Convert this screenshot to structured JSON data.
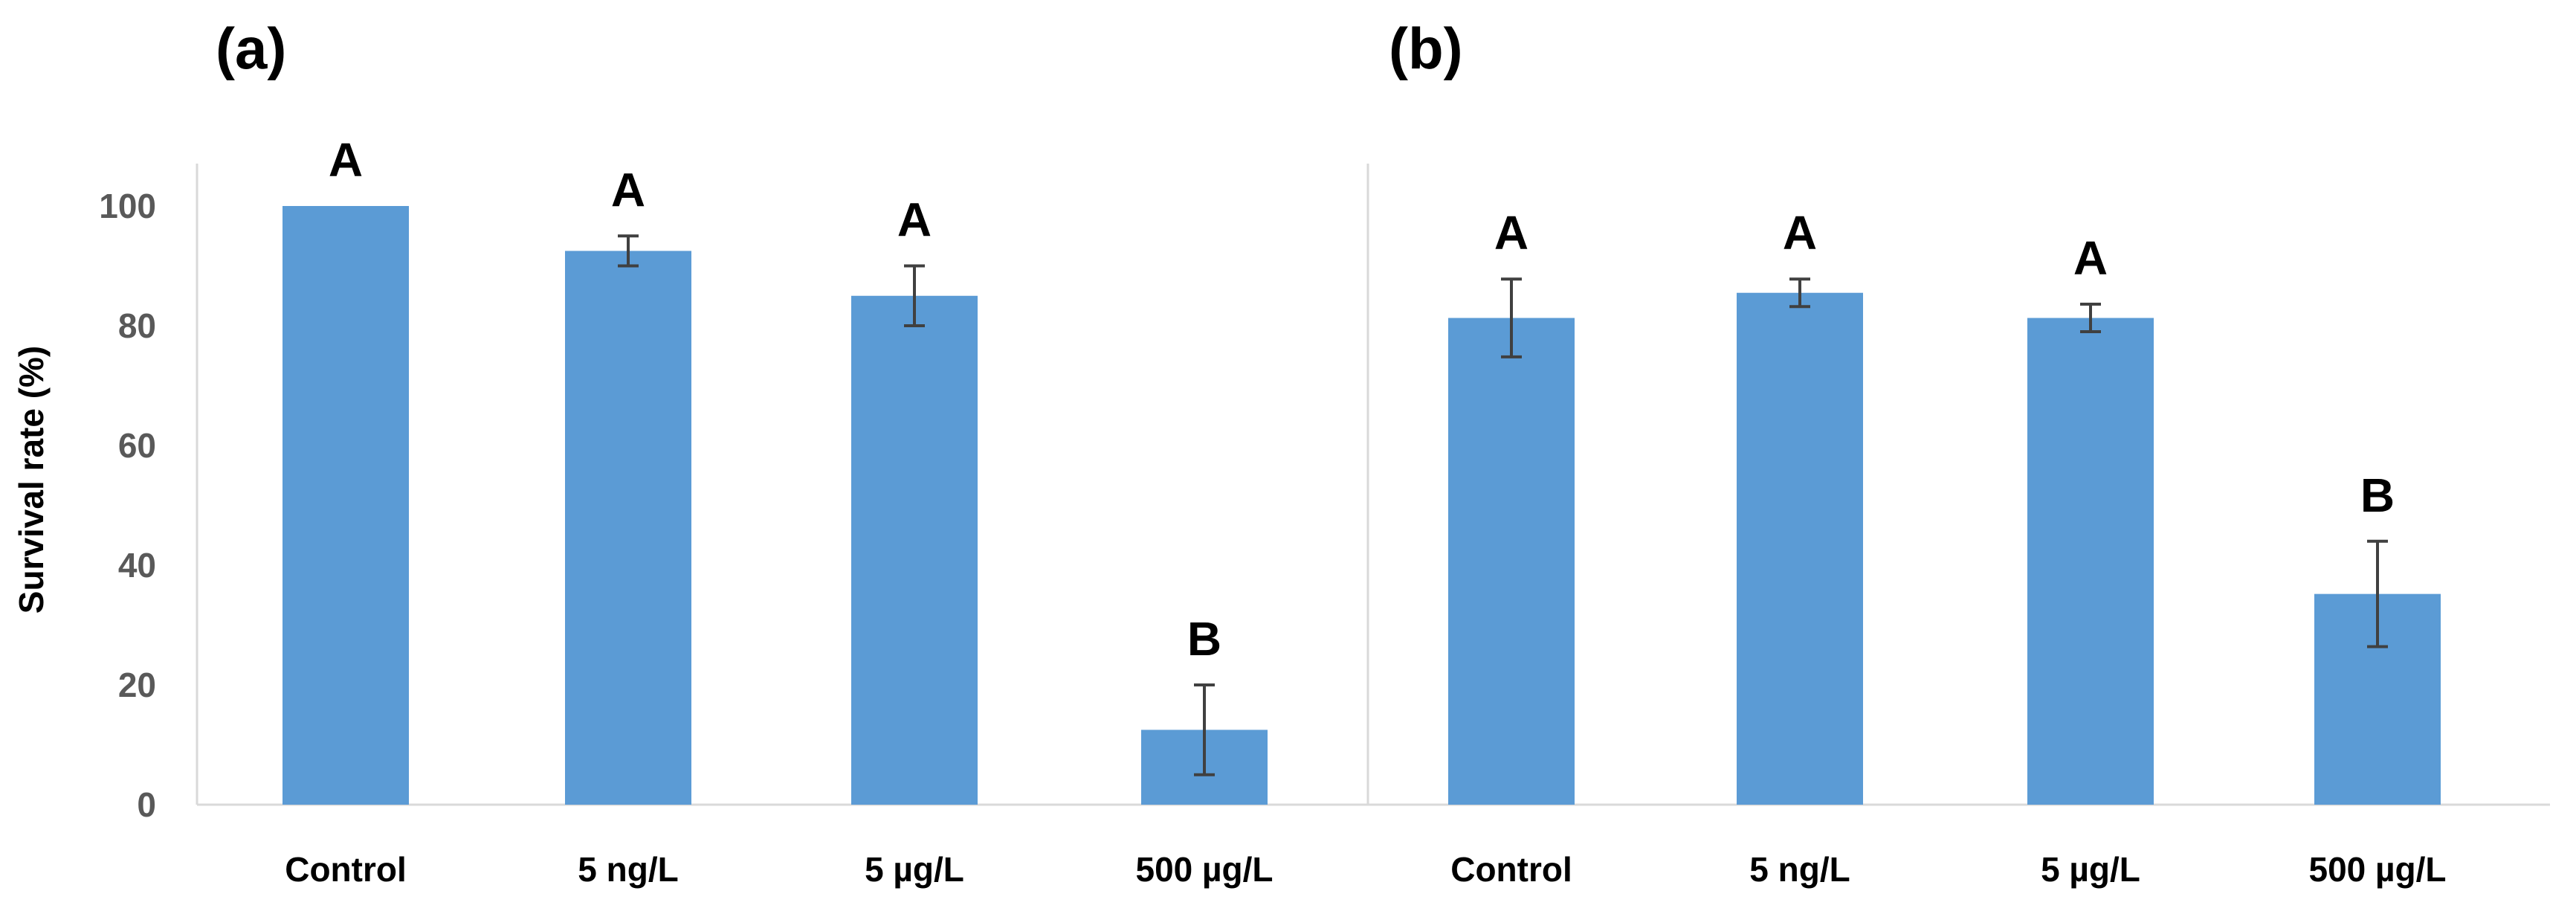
{
  "colors": {
    "bar": "#5b9bd5",
    "error_bar": "#404040",
    "axis": "#d9d9d9"
  },
  "chart_data": [
    {
      "type": "bar",
      "panel_label": "(a)",
      "ylabel": "Survival rate (%)",
      "ylim": [
        0,
        110
      ],
      "yticks": [
        0,
        20,
        40,
        60,
        80,
        100
      ],
      "grid": false,
      "categories": [
        "Control",
        "5 ng/L",
        "5 µg/L",
        "500 µg/L"
      ],
      "values": [
        100,
        92.5,
        85,
        12.5
      ],
      "errors": [
        0,
        2.5,
        5,
        7.5
      ],
      "significance": [
        "A",
        "A",
        "A",
        "B"
      ]
    },
    {
      "type": "bar",
      "panel_label": "(b)",
      "ylim": [
        0,
        110
      ],
      "grid": false,
      "categories": [
        "Control",
        "5 ng/L",
        "5 µg/L",
        "500 µg/L"
      ],
      "values": [
        81.3,
        85.5,
        81.3,
        35.2
      ],
      "errors": [
        6.5,
        2.3,
        2.3,
        8.8
      ],
      "significance": [
        "A",
        "A",
        "A",
        "B"
      ]
    }
  ]
}
